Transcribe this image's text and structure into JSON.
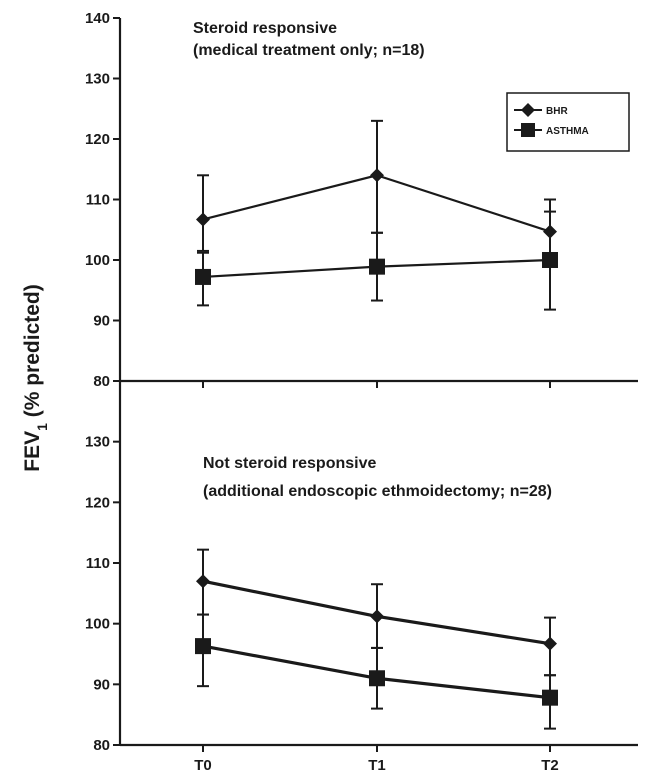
{
  "chart_data": {
    "type": "line",
    "ylabel": "FEV",
    "ylabel_subscript": "1",
    "ylabel_suffix": " (% predicted)",
    "categories": [
      "T0",
      "T1",
      "T2"
    ],
    "legend": {
      "placement": "top-right (upper panel)",
      "entries": [
        {
          "label": "BHR",
          "marker": "diamond"
        },
        {
          "label": "ASTHMA",
          "marker": "square"
        }
      ]
    },
    "panels": [
      {
        "annotation": [
          "Steroid responsive",
          "(medical treatment only; n=18)"
        ],
        "ylim": [
          80,
          140
        ],
        "yticks": [
          "80",
          "90",
          "100",
          "110",
          "120",
          "130",
          "140"
        ],
        "series": [
          {
            "name": "BHR",
            "marker": "diamond",
            "values": [
              106.7,
              114,
              104.7
            ],
            "err_low": [
              101.5,
              104.5,
              99.5
            ],
            "err_high": [
              114,
              123,
              110
            ]
          },
          {
            "name": "ASTHMA",
            "marker": "square",
            "values": [
              97.2,
              98.9,
              100
            ],
            "err_low": [
              92.5,
              93.3,
              91.8
            ],
            "err_high": [
              101.2,
              104.5,
              108
            ]
          }
        ]
      },
      {
        "annotation": [
          "Not steroid responsive",
          "(additional endoscopic ethmoidectomy; n=28)"
        ],
        "ylim": [
          80,
          140
        ],
        "yticks": [
          "80",
          "90",
          "100",
          "110",
          "120",
          "130"
        ],
        "series": [
          {
            "name": "BHR",
            "marker": "diamond",
            "values": [
              107,
              101.2,
              96.7
            ],
            "err_low": [
              101.5,
              96,
              91.5
            ],
            "err_high": [
              112.2,
              106.5,
              101
            ]
          },
          {
            "name": "ASTHMA",
            "marker": "square",
            "values": [
              96.3,
              91,
              87.8
            ],
            "err_low": [
              89.7,
              86,
              82.7
            ],
            "err_high": [
              101.5,
              96,
              91.5
            ]
          }
        ]
      }
    ]
  }
}
